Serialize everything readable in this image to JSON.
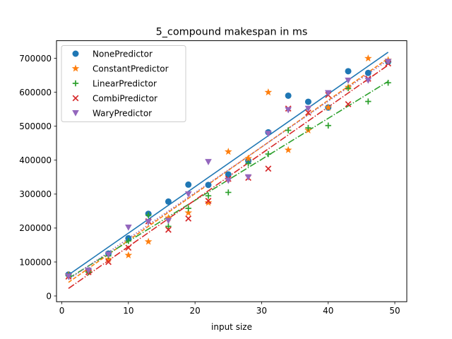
{
  "chart_data": {
    "type": "scatter",
    "title": "5_compound makespan in ms",
    "xlabel": "input size",
    "ylabel": "",
    "xlim": [
      -0.8,
      51.8
    ],
    "ylim": [
      -17000,
      752000
    ],
    "x_ticks": [
      0,
      10,
      20,
      30,
      40,
      50
    ],
    "y_ticks": [
      0,
      100000,
      200000,
      300000,
      400000,
      500000,
      600000,
      700000
    ],
    "grid": false,
    "legend_position": "top-left",
    "series": [
      {
        "name": "NonePredictor",
        "marker": "circle",
        "color": "#1f77b4",
        "line_style": "solid",
        "fit": [
          [
            1,
            62000
          ],
          [
            49,
            718000
          ]
        ],
        "x": [
          1,
          4,
          7,
          10,
          13,
          16,
          19,
          22,
          25,
          28,
          31,
          34,
          37,
          40,
          43,
          46,
          49
        ],
        "y": [
          63000,
          75000,
          125000,
          170000,
          242000,
          278000,
          328000,
          327000,
          358000,
          398000,
          482000,
          590000,
          572000,
          555000,
          662000,
          657000,
          690000
        ]
      },
      {
        "name": "ConstantPredictor",
        "marker": "star",
        "color": "#ff7f0e",
        "line_style": "dashed",
        "fit": [
          [
            1,
            40000
          ],
          [
            49,
            700000
          ]
        ],
        "x": [
          1,
          4,
          7,
          10,
          13,
          16,
          19,
          22,
          25,
          28,
          31,
          34,
          37,
          40,
          43,
          46,
          49
        ],
        "y": [
          62000,
          72000,
          108000,
          120000,
          160000,
          230000,
          245000,
          275000,
          425000,
          405000,
          600000,
          430000,
          488000,
          555000,
          615000,
          700000,
          695000
        ]
      },
      {
        "name": "LinearPredictor",
        "marker": "plus",
        "color": "#2ca02c",
        "line_style": "dashdot",
        "fit": [
          [
            1,
            52000
          ],
          [
            49,
            632000
          ]
        ],
        "x": [
          1,
          4,
          7,
          10,
          13,
          16,
          19,
          22,
          25,
          28,
          31,
          34,
          37,
          40,
          43,
          46,
          49
        ],
        "y": [
          60000,
          70000,
          118000,
          162000,
          238000,
          205000,
          258000,
          295000,
          305000,
          390000,
          418000,
          488000,
          495000,
          502000,
          612000,
          573000,
          628000
        ]
      },
      {
        "name": "CombiPredictor",
        "marker": "x",
        "color": "#d62728",
        "line_style": "dashdot",
        "fit": [
          [
            1,
            22000
          ],
          [
            49,
            680000
          ]
        ],
        "x": [
          1,
          4,
          7,
          10,
          13,
          16,
          19,
          22,
          25,
          28,
          31,
          34,
          37,
          40,
          43,
          46,
          49
        ],
        "y": [
          57000,
          70000,
          100000,
          142000,
          220000,
          195000,
          228000,
          280000,
          345000,
          348000,
          375000,
          552000,
          540000,
          592000,
          565000,
          640000,
          685000
        ]
      },
      {
        "name": "WaryPredictor",
        "marker": "triangle_down",
        "color": "#9467bd",
        "line_style": "dotted",
        "fit": [
          [
            1,
            48000
          ],
          [
            49,
            695000
          ]
        ],
        "x": [
          1,
          4,
          7,
          10,
          13,
          16,
          19,
          22,
          25,
          28,
          31,
          34,
          37,
          40,
          43,
          46,
          49
        ],
        "y": [
          58000,
          75000,
          122000,
          202000,
          218000,
          222000,
          300000,
          395000,
          340000,
          350000,
          478000,
          548000,
          552000,
          598000,
          635000,
          635000,
          690000
        ]
      }
    ]
  }
}
